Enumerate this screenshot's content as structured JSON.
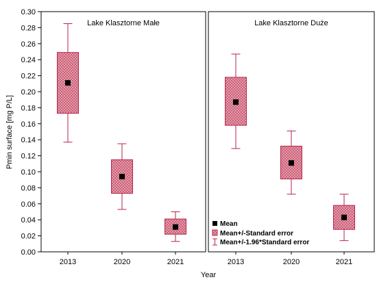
{
  "chart_data": {
    "type": "box",
    "ylabel": "Pmin surface [mg P/L]",
    "xlabel": "Year",
    "ylim": [
      0,
      0.3
    ],
    "yticks": [
      "0.00",
      "0.02",
      "0.04",
      "0.06",
      "0.08",
      "0.10",
      "0.12",
      "0.14",
      "0.16",
      "0.18",
      "0.20",
      "0.22",
      "0.24",
      "0.26",
      "0.28",
      "0.30"
    ],
    "categories": [
      "2013",
      "2020",
      "2021"
    ],
    "colors": {
      "box_fill": "#e39aa9",
      "box_stroke": "#b8224a",
      "whisker": "#b8224a",
      "mean": "#000000"
    },
    "panels": [
      {
        "title": "Lake Klasztorne Małe",
        "mean": [
          0.211,
          0.094,
          0.031
        ],
        "se_low": [
          0.173,
          0.073,
          0.022
        ],
        "se_high": [
          0.249,
          0.115,
          0.041
        ],
        "ci_low": [
          0.137,
          0.053,
          0.013
        ],
        "ci_high": [
          0.285,
          0.135,
          0.05
        ]
      },
      {
        "title": "Lake Klasztorne Duże",
        "mean": [
          0.187,
          0.111,
          0.043
        ],
        "se_low": [
          0.158,
          0.091,
          0.028
        ],
        "se_high": [
          0.218,
          0.132,
          0.058
        ],
        "ci_low": [
          0.129,
          0.072,
          0.014
        ],
        "ci_high": [
          0.247,
          0.151,
          0.072
        ]
      }
    ],
    "legend": {
      "position": "bottom-right panel 2",
      "items": [
        "Mean",
        "Mean+/-Standard error",
        "Mean+/-1.96*Standard error"
      ]
    }
  }
}
